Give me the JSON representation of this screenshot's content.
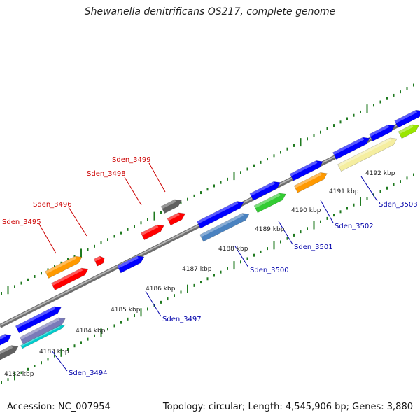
{
  "title": "Shewanella denitrificans OS217, complete genome",
  "footer": {
    "accession": "Accession: NC_007954",
    "summary": "Topology: circular; Length: 4,545,906 bp; Genes: 3,880"
  },
  "colors": {
    "backbone": "#8c8c8c",
    "tick": "#1f7a1f",
    "label_forward": "#cc0000",
    "label_reverse": "#0000aa",
    "tick_label": "#222222"
  },
  "ticks": [
    {
      "label": "4182 kbp"
    },
    {
      "label": "4183 kbp"
    },
    {
      "label": "4184 kbp"
    },
    {
      "label": "4185 kbp"
    },
    {
      "label": "4186 kbp"
    },
    {
      "label": "4187 kbp"
    },
    {
      "label": "4188 kbp"
    },
    {
      "label": "4189 kbp"
    },
    {
      "label": "4190 kbp"
    },
    {
      "label": "4191 kbp"
    },
    {
      "label": "4192 kbp"
    }
  ],
  "gene_labels": [
    {
      "text": "Sden_3495",
      "strand": "forward"
    },
    {
      "text": "Sden_3496",
      "strand": "forward"
    },
    {
      "text": "Sden_3498",
      "strand": "forward"
    },
    {
      "text": "Sden_3499",
      "strand": "forward"
    },
    {
      "text": "Sden_3494",
      "strand": "reverse"
    },
    {
      "text": "Sden_3497",
      "strand": "reverse"
    },
    {
      "text": "Sden_3500",
      "strand": "reverse"
    },
    {
      "text": "Sden_3501",
      "strand": "reverse"
    },
    {
      "text": "Sden_3502",
      "strand": "reverse"
    },
    {
      "text": "Sden_3503",
      "strand": "reverse"
    }
  ]
}
